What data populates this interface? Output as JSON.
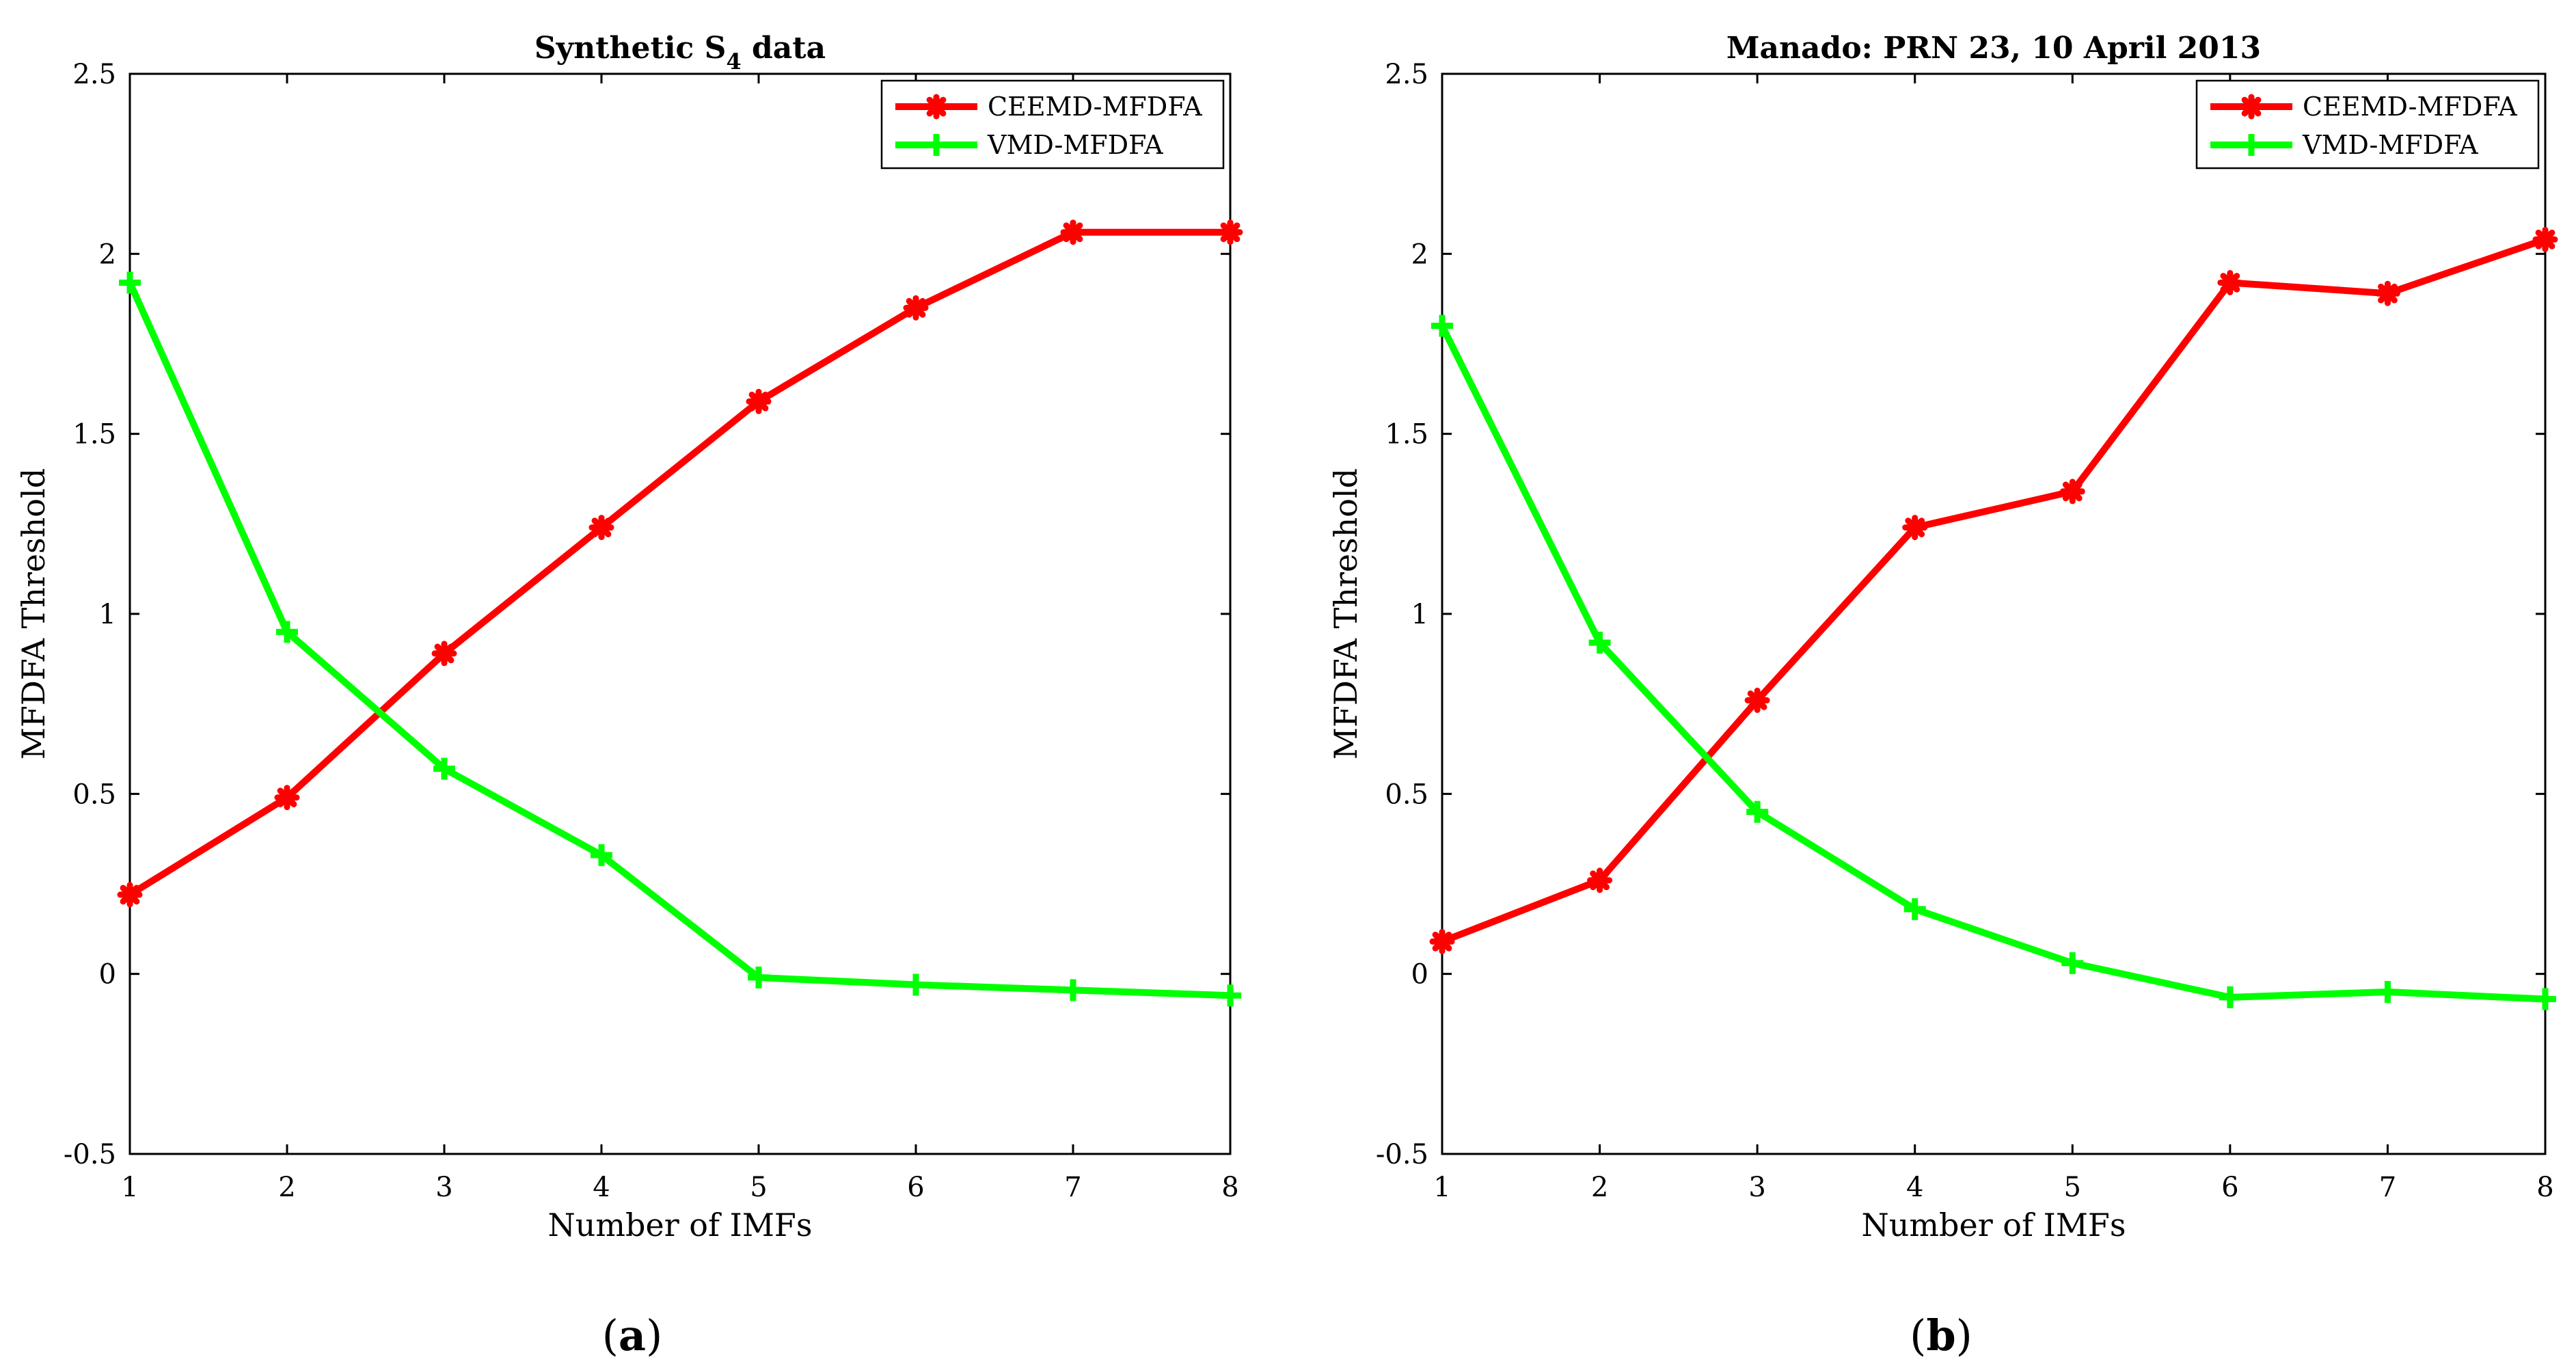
{
  "chart_data": [
    {
      "type": "line",
      "panel_label": "a",
      "title": "Synthetic S",
      "title_subscript": "4",
      "title_suffix": " data",
      "xlabel": "Number of IMFs",
      "ylabel": "MFDFA Threshold",
      "xlim": [
        1,
        8
      ],
      "ylim": [
        -0.5,
        2.5
      ],
      "x": [
        1,
        2,
        3,
        4,
        5,
        6,
        7,
        8
      ],
      "xticks": [
        "1",
        "2",
        "3",
        "4",
        "5",
        "6",
        "7",
        "8"
      ],
      "yticks": [
        -0.5,
        0,
        0.5,
        1,
        1.5,
        2,
        2.5
      ],
      "ytick_labels": [
        "-0.5",
        "0",
        "0.5",
        "1",
        "1.5",
        "2",
        "2.5"
      ],
      "legend_position": "top-right",
      "series": [
        {
          "name": "CEEMD-MFDFA",
          "color": "#ff0000",
          "marker": "star",
          "values": [
            0.22,
            0.49,
            0.89,
            1.24,
            1.59,
            1.85,
            2.06,
            2.06
          ]
        },
        {
          "name": "VMD-MFDFA",
          "color": "#00ff00",
          "marker": "plus",
          "values": [
            1.92,
            0.95,
            0.57,
            0.33,
            -0.01,
            -0.03,
            -0.045,
            -0.06
          ]
        }
      ]
    },
    {
      "type": "line",
      "panel_label": "b",
      "title": "Manado: PRN 23, 10 April 2013",
      "title_subscript": "",
      "title_suffix": "",
      "xlabel": "Number of IMFs",
      "ylabel": "MFDFA Threshold",
      "xlim": [
        1,
        8
      ],
      "ylim": [
        -0.5,
        2.5
      ],
      "x": [
        1,
        2,
        3,
        4,
        5,
        6,
        7,
        8
      ],
      "xticks": [
        "1",
        "2",
        "3",
        "4",
        "5",
        "6",
        "7",
        "8"
      ],
      "yticks": [
        -0.5,
        0,
        0.5,
        1,
        1.5,
        2,
        2.5
      ],
      "ytick_labels": [
        "-0.5",
        "0",
        "0.5",
        "1",
        "1.5",
        "2",
        "2.5"
      ],
      "legend_position": "top-right",
      "series": [
        {
          "name": "CEEMD-MFDFA",
          "color": "#ff0000",
          "marker": "star",
          "values": [
            0.09,
            0.26,
            0.76,
            1.24,
            1.34,
            1.92,
            1.89,
            2.04
          ]
        },
        {
          "name": "VMD-MFDFA",
          "color": "#00ff00",
          "marker": "plus",
          "values": [
            1.8,
            0.92,
            0.45,
            0.18,
            0.03,
            -0.065,
            -0.05,
            -0.07
          ]
        }
      ]
    }
  ]
}
